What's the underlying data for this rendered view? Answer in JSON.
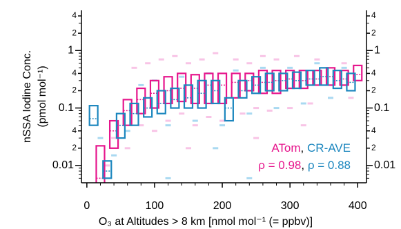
{
  "chart_data": {
    "type": "box",
    "xlabel": "O₃ at Altitudes > 8 km [nmol mol⁻¹ (= ppbv)]",
    "ylabel": [
      "nSSA Iodine Conc.",
      "(pmol mol⁻¹)"
    ],
    "xlim": [
      -8,
      413
    ],
    "xticks": [
      0,
      100,
      200,
      300,
      400
    ],
    "xminorticks": [
      20,
      40,
      60,
      80,
      120,
      140,
      160,
      180,
      220,
      240,
      260,
      280,
      320,
      340,
      360,
      380
    ],
    "ylim": [
      0.005,
      5
    ],
    "yscale": "log",
    "yticks": [
      0.01,
      {
        "value": 0.02,
        "label": "2"
      },
      {
        "value": 0.04,
        "label": "4"
      },
      0.1,
      {
        "value": 0.2,
        "label": "2"
      },
      {
        "value": 0.4,
        "label": "4"
      },
      1,
      2,
      4
    ],
    "yminorticks": [
      0.006,
      0.007,
      0.008,
      0.009,
      0.03,
      0.05,
      0.06,
      0.07,
      0.08,
      0.09,
      0.3,
      0.5,
      0.6,
      0.7,
      0.8,
      0.9,
      3
    ],
    "mirror_y_axis": true,
    "legend_separator": ",",
    "series": [
      {
        "name": "ATom",
        "annotation": "ρ = 0.98",
        "color": "#e6158c",
        "point_color": "#f8c4e6",
        "x": [
          20,
          40,
          60,
          80,
          100,
          120,
          140,
          160,
          180,
          200,
          220,
          240,
          260,
          280,
          300,
          320,
          340,
          360,
          380,
          400
        ],
        "q1": [
          0.004,
          0.02,
          0.05,
          0.08,
          0.1,
          0.12,
          0.13,
          0.12,
          0.12,
          0.12,
          0.15,
          0.2,
          0.18,
          0.18,
          0.22,
          0.22,
          0.25,
          0.25,
          0.25,
          0.3
        ],
        "median": [
          0.006,
          0.04,
          0.09,
          0.14,
          0.18,
          0.2,
          0.22,
          0.22,
          0.25,
          0.25,
          0.28,
          0.3,
          0.28,
          0.3,
          0.32,
          0.3,
          0.32,
          0.35,
          0.32,
          0.38
        ],
        "q3": [
          0.022,
          0.06,
          0.14,
          0.22,
          0.3,
          0.35,
          0.4,
          0.38,
          0.4,
          0.4,
          0.4,
          0.4,
          0.45,
          0.45,
          0.45,
          0.45,
          0.45,
          0.5,
          0.45,
          0.55
        ],
        "points_x": [
          30,
          40,
          60,
          70,
          80,
          90,
          100,
          110,
          120,
          130,
          140,
          150,
          160,
          170,
          180,
          190,
          200,
          220,
          230,
          240,
          250,
          260,
          270,
          280,
          300,
          310,
          330,
          340,
          360,
          380,
          390,
          150,
          250,
          320
        ],
        "points_y": [
          0.01,
          0.03,
          0.02,
          0.5,
          0.05,
          0.6,
          0.04,
          0.7,
          0.06,
          0.8,
          0.08,
          0.6,
          0.05,
          0.7,
          0.07,
          0.9,
          0.06,
          0.7,
          0.08,
          0.6,
          0.1,
          0.8,
          0.09,
          0.7,
          0.1,
          0.8,
          0.12,
          0.7,
          0.15,
          0.6,
          0.15,
          0.02,
          0.03,
          0.05
        ]
      },
      {
        "name": "CR-AVE",
        "annotation": "ρ = 0.88",
        "color": "#1b86be",
        "point_color": "#a9d9f1",
        "x": [
          10,
          30,
          50,
          70,
          90,
          110,
          130,
          150,
          170,
          190,
          210,
          230,
          250,
          270,
          290,
          310,
          330,
          350,
          370,
          390
        ],
        "q1": [
          0.05,
          0.006,
          0.03,
          0.05,
          0.07,
          0.08,
          0.1,
          0.1,
          0.1,
          0.12,
          0.06,
          0.15,
          0.18,
          0.2,
          0.2,
          0.22,
          0.25,
          0.25,
          0.22,
          0.2
        ],
        "median": [
          0.065,
          0.008,
          0.05,
          0.08,
          0.1,
          0.12,
          0.14,
          0.15,
          0.18,
          0.2,
          0.1,
          0.2,
          0.25,
          0.28,
          0.3,
          0.3,
          0.32,
          0.35,
          0.3,
          0.28
        ],
        "q3": [
          0.11,
          0.012,
          0.08,
          0.12,
          0.15,
          0.2,
          0.22,
          0.25,
          0.3,
          0.3,
          0.15,
          0.3,
          0.35,
          0.4,
          0.4,
          0.42,
          0.45,
          0.5,
          0.45,
          0.4
        ],
        "points_x": [
          20,
          40,
          60,
          80,
          100,
          120,
          140,
          160,
          180,
          200,
          220,
          240,
          260,
          280,
          300,
          320,
          340,
          360,
          380,
          120,
          190,
          240
        ],
        "points_y": [
          0.03,
          0.015,
          0.04,
          0.25,
          0.3,
          0.05,
          0.35,
          0.06,
          0.4,
          0.05,
          0.45,
          0.08,
          0.5,
          0.1,
          0.5,
          0.12,
          0.6,
          0.15,
          0.5,
          0.006,
          0.02,
          0.006
        ]
      }
    ]
  }
}
